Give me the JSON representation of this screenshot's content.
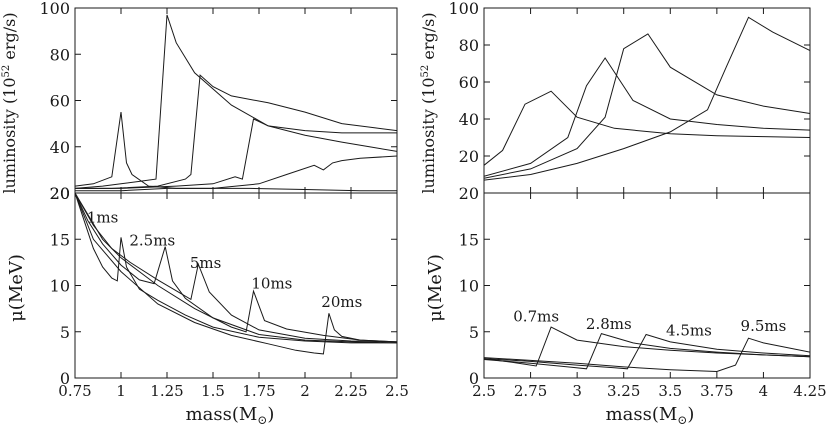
{
  "figure": {
    "xlabel_left": "mass(M",
    "xlabel_right": "mass(M",
    "mass_unit_symbol": "⊙",
    "ylabel_lum": "luminosity (10",
    "ylabel_lum_exp": "52",
    "ylabel_lum_unit": " erg/s)",
    "ylabel_mu": "μ(MeV)"
  },
  "chart_data": [
    {
      "id": "left-top",
      "type": "line",
      "xlim": [
        0.75,
        2.5
      ],
      "ylim": [
        20,
        100
      ],
      "xticks": [
        0.75,
        1,
        1.25,
        1.5,
        1.75,
        2,
        2.25,
        2.5
      ],
      "yticks": [
        20,
        40,
        60,
        80,
        100
      ],
      "ytick_labels": [
        "20",
        "40",
        "60",
        "80",
        "100"
      ],
      "series": [
        {
          "x": [
            0.75,
            0.85,
            0.95,
            1.0,
            1.03,
            1.06,
            1.15,
            1.3,
            1.5,
            1.7,
            2.0,
            2.3,
            2.5
          ],
          "y": [
            23,
            24,
            27,
            55,
            33,
            28,
            23,
            22,
            22,
            22,
            21.5,
            21,
            21
          ]
        },
        {
          "x": [
            0.75,
            0.9,
            1.0,
            1.1,
            1.19,
            1.25,
            1.3,
            1.4,
            1.6,
            1.8,
            2.0,
            2.2,
            2.35,
            2.5
          ],
          "y": [
            22,
            23,
            24,
            25,
            26,
            97,
            85,
            72,
            58,
            49,
            45,
            42,
            40,
            38
          ]
        },
        {
          "x": [
            0.75,
            0.95,
            1.2,
            1.35,
            1.38,
            1.43,
            1.5,
            1.6,
            1.8,
            2.0,
            2.2,
            2.5
          ],
          "y": [
            22,
            22,
            23,
            26,
            28,
            71,
            66,
            62,
            59,
            55,
            50,
            47
          ]
        },
        {
          "x": [
            0.75,
            1.0,
            1.3,
            1.5,
            1.62,
            1.66,
            1.72,
            1.8,
            2.0,
            2.2,
            2.5
          ],
          "y": [
            22,
            22,
            23,
            24,
            27,
            26,
            52,
            49,
            47,
            46,
            46
          ]
        },
        {
          "x": [
            0.75,
            1.0,
            1.25,
            1.5,
            1.75,
            1.9,
            2.05,
            2.1,
            2.15,
            2.2,
            2.3,
            2.5
          ],
          "y": [
            21,
            21,
            22,
            22,
            24,
            28,
            32,
            30,
            33,
            34,
            35,
            36
          ]
        }
      ]
    },
    {
      "id": "left-bottom",
      "type": "line",
      "xlim": [
        0.75,
        2.5
      ],
      "ylim": [
        0,
        20
      ],
      "xticks": [
        0.75,
        1,
        1.25,
        1.5,
        1.75,
        2,
        2.25,
        2.5
      ],
      "xtick_labels": [
        "0.75",
        "1",
        "1.25",
        "1.5",
        "1.75",
        "2",
        "2.25",
        "2.5"
      ],
      "yticks": [
        0,
        5,
        10,
        15,
        20
      ],
      "ytick_labels": [
        "0",
        "5",
        "10",
        "15",
        "20"
      ],
      "annotations": [
        {
          "text": "1ms",
          "x": 0.9,
          "y": 16.8
        },
        {
          "text": "2.5ms",
          "x": 1.17,
          "y": 14.3
        },
        {
          "text": "5ms",
          "x": 1.46,
          "y": 11.9
        },
        {
          "text": "10ms",
          "x": 1.82,
          "y": 9.7
        },
        {
          "text": "20ms",
          "x": 2.2,
          "y": 7.7
        }
      ],
      "series": [
        {
          "x": [
            0.75,
            0.8,
            0.85,
            0.9,
            0.95,
            0.98,
            1.0,
            1.03,
            1.1,
            1.2,
            1.35,
            1.5,
            1.75,
            2.0,
            2.25,
            2.5
          ],
          "y": [
            20,
            17,
            14,
            12,
            10.8,
            10.5,
            15.2,
            12,
            9.6,
            8.4,
            6.8,
            5.5,
            4.4,
            4.0,
            3.8,
            3.8
          ]
        },
        {
          "x": [
            0.75,
            0.82,
            0.9,
            1.0,
            1.1,
            1.18,
            1.24,
            1.28,
            1.35,
            1.5,
            1.75,
            2.0,
            2.25,
            2.5
          ],
          "y": [
            20,
            17,
            14.5,
            12.2,
            10.6,
            10.2,
            14.2,
            10.5,
            8.6,
            6.5,
            4.7,
            4.1,
            3.9,
            3.8
          ]
        },
        {
          "x": [
            0.75,
            0.85,
            0.95,
            1.05,
            1.2,
            1.32,
            1.38,
            1.42,
            1.48,
            1.6,
            1.75,
            2.0,
            2.25,
            2.5
          ],
          "y": [
            20,
            16.5,
            14,
            12.5,
            10.6,
            9.2,
            8.5,
            12.3,
            9.3,
            6.8,
            5.2,
            4.3,
            4.0,
            3.9
          ]
        },
        {
          "x": [
            0.75,
            0.9,
            1.0,
            1.2,
            1.4,
            1.6,
            1.68,
            1.72,
            1.78,
            1.9,
            2.1,
            2.3,
            2.5
          ],
          "y": [
            20,
            15,
            13,
            10,
            7.5,
            5.5,
            5.0,
            9.4,
            6.2,
            5.3,
            4.6,
            4.1,
            3.9
          ]
        },
        {
          "x": [
            0.75,
            0.85,
            1.0,
            1.2,
            1.4,
            1.6,
            1.8,
            1.95,
            2.05,
            2.1,
            2.13,
            2.16,
            2.2,
            2.3,
            2.5
          ],
          "y": [
            20,
            15,
            11.5,
            8,
            6,
            4.6,
            3.7,
            3.0,
            2.7,
            2.6,
            7.0,
            5.2,
            4.5,
            4.1,
            3.9
          ]
        }
      ]
    },
    {
      "id": "right-top",
      "type": "line",
      "xlim": [
        2.5,
        4.25
      ],
      "ylim": [
        0,
        100
      ],
      "xticks": [
        2.5,
        2.75,
        3,
        3.25,
        3.5,
        3.75,
        4,
        4.25
      ],
      "yticks": [
        20,
        40,
        60,
        80,
        100
      ],
      "ytick_labels": [
        "20",
        "40",
        "60",
        "80",
        "100"
      ],
      "series": [
        {
          "x": [
            2.5,
            2.6,
            2.72,
            2.86,
            3.0,
            3.2,
            3.5,
            3.75,
            4.0,
            4.25
          ],
          "y": [
            15,
            23,
            48,
            55,
            41,
            35,
            32,
            31,
            30.5,
            30
          ]
        },
        {
          "x": [
            2.5,
            2.75,
            2.95,
            3.05,
            3.15,
            3.3,
            3.5,
            3.75,
            4.0,
            4.25
          ],
          "y": [
            9,
            16,
            30,
            58,
            73,
            50,
            40,
            37,
            35,
            34
          ]
        },
        {
          "x": [
            2.5,
            2.75,
            3.0,
            3.15,
            3.25,
            3.38,
            3.5,
            3.75,
            4.0,
            4.25
          ],
          "y": [
            8,
            13,
            24,
            41,
            78,
            86,
            68,
            53,
            47,
            43
          ]
        },
        {
          "x": [
            2.5,
            2.75,
            3.0,
            3.25,
            3.5,
            3.7,
            3.8,
            3.92,
            4.05,
            4.25
          ],
          "y": [
            7,
            10,
            16,
            24,
            33,
            45,
            68,
            95,
            87,
            77
          ]
        }
      ]
    },
    {
      "id": "right-bottom",
      "type": "line",
      "xlim": [
        2.5,
        4.25
      ],
      "ylim": [
        0,
        20
      ],
      "xticks": [
        2.5,
        2.75,
        3,
        3.25,
        3.5,
        3.75,
        4,
        4.25
      ],
      "xtick_labels": [
        "2.5",
        "2.75",
        "3",
        "3.25",
        "3.5",
        "3.75",
        "4",
        "4.25"
      ],
      "yticks": [
        0,
        5,
        10,
        15,
        20
      ],
      "ytick_labels": [
        "0",
        "5",
        "10",
        "15",
        "20"
      ],
      "annotations": [
        {
          "text": "0.7ms",
          "x": 2.78,
          "y": 6.1
        },
        {
          "text": "2.8ms",
          "x": 3.17,
          "y": 5.3
        },
        {
          "text": "4.5ms",
          "x": 3.6,
          "y": 4.6
        },
        {
          "text": "9.5ms",
          "x": 4.0,
          "y": 5.1
        }
      ],
      "series": [
        {
          "x": [
            2.5,
            2.65,
            2.78,
            2.86,
            3.0,
            3.25,
            3.5,
            3.75,
            4.0,
            4.25
          ],
          "y": [
            2.1,
            1.7,
            1.3,
            5.5,
            4.1,
            3.4,
            3.0,
            2.7,
            2.5,
            2.3
          ]
        },
        {
          "x": [
            2.5,
            2.75,
            2.95,
            3.05,
            3.13,
            3.3,
            3.5,
            3.75,
            4.0,
            4.25
          ],
          "y": [
            2.0,
            1.6,
            1.2,
            1.0,
            4.8,
            3.8,
            3.2,
            2.8,
            2.5,
            2.3
          ]
        },
        {
          "x": [
            2.5,
            2.75,
            3.0,
            3.2,
            3.27,
            3.37,
            3.5,
            3.75,
            4.0,
            4.25
          ],
          "y": [
            2.1,
            1.8,
            1.4,
            1.1,
            1.0,
            4.7,
            3.9,
            3.1,
            2.7,
            2.4
          ]
        },
        {
          "x": [
            2.5,
            2.75,
            3.0,
            3.25,
            3.5,
            3.75,
            3.85,
            3.92,
            4.0,
            4.25
          ],
          "y": [
            2.2,
            1.9,
            1.6,
            1.2,
            0.9,
            0.7,
            1.4,
            4.3,
            3.8,
            2.8
          ]
        }
      ]
    }
  ]
}
